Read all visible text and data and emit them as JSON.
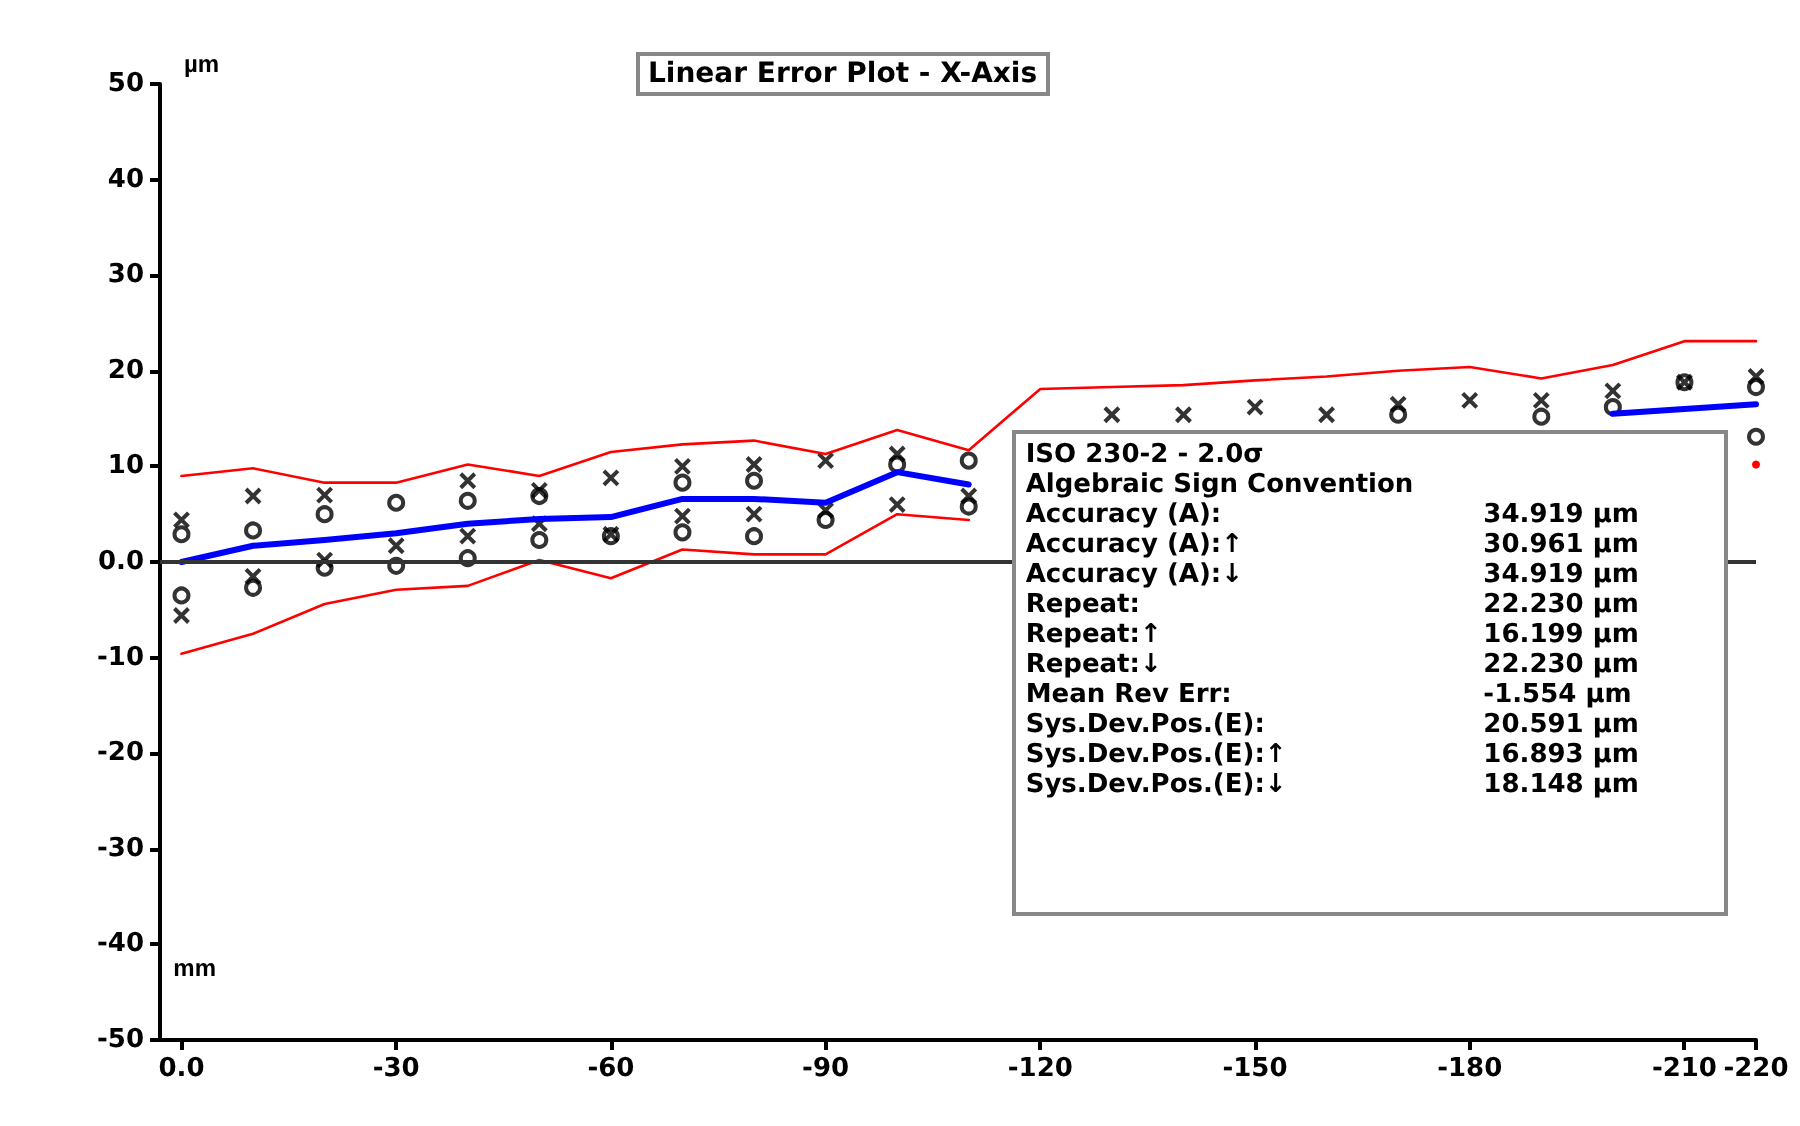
{
  "chart_data": {
    "type": "line",
    "title": "Linear Error Plot - X-Axis",
    "xlabel": "mm",
    "ylabel": "µm",
    "xlim": [
      3,
      -220
    ],
    "xticks": [
      {
        "value": 0,
        "label": "0.0"
      },
      -30,
      -60,
      -90,
      -120,
      -150,
      -180,
      -210,
      -220
    ],
    "ylim": [
      -50,
      50
    ],
    "yticks": [
      -50,
      -40,
      -30,
      -20,
      -10,
      {
        "value": 0,
        "label": "0.0"
      },
      10,
      20,
      30,
      40,
      50
    ],
    "grid": false,
    "line_style": "solid",
    "marker": "none",
    "ref_lines": [
      {
        "axis": "y",
        "value": 0,
        "color": "#333333"
      }
    ],
    "series": [
      {
        "color": "#ff0000",
        "x": [
          0,
          -10,
          -20,
          -30,
          -40,
          -50,
          -60,
          -70,
          -80,
          -90,
          -100,
          -110,
          -120,
          -130,
          -140,
          -150,
          -160,
          -170,
          -180,
          -190,
          -200,
          -210,
          -220
        ],
        "values": [
          9,
          9.8,
          8.3,
          8.3,
          10.2,
          9,
          11.5,
          12.3,
          12.7,
          11.3,
          13.8,
          11.7,
          18.1,
          18.3,
          18.5,
          19,
          19.4,
          20,
          20.4,
          19.2,
          20.6,
          23.1,
          23.1
        ]
      },
      {
        "color": "#ff0000",
        "x": [
          0,
          -10,
          -20,
          -30,
          -40,
          -50,
          -60,
          -70,
          -80,
          -90,
          -100,
          -110,
          -120,
          -130,
          -140,
          -150,
          -160,
          -170,
          -180,
          -190,
          -200,
          -210,
          -220
        ],
        "values": [
          -9.6,
          -7.5,
          -4.4,
          -2.9,
          -2.5,
          0.2,
          -1.7,
          1.3,
          0.8,
          0.8,
          5,
          4.4,
          null,
          null,
          null,
          null,
          null,
          null,
          null,
          null,
          null,
          null,
          10.2
        ]
      },
      {
        "color": "#0000ff",
        "x": [
          0,
          -10,
          -20,
          -30,
          -40,
          -50,
          -60,
          -70,
          -80,
          -90,
          -100,
          -110,
          -120,
          -130,
          -140,
          -150,
          -160,
          -170,
          -180,
          -190,
          -200,
          -210,
          -220
        ],
        "values": [
          0,
          1.7,
          2.3,
          3,
          4,
          4.5,
          4.7,
          6.6,
          6.6,
          6.2,
          9.4,
          8.1,
          null,
          null,
          null,
          null,
          null,
          null,
          null,
          null,
          15.5,
          16,
          16.5
        ]
      },
      {
        "type": "scatter",
        "marker": "cross",
        "color": "#000000",
        "x": [
          0,
          0,
          -10,
          -10,
          -20,
          -20,
          -30,
          -40,
          -40,
          -50,
          -50,
          -60,
          -60,
          -70,
          -70,
          -80,
          -80,
          -90,
          -90,
          -100,
          -100,
          -110,
          -130,
          -140,
          -150,
          -160,
          -170,
          -180,
          -190,
          -200,
          -210,
          -220
        ],
        "values": [
          4.4,
          -5.6,
          6.9,
          -1.5,
          7,
          0.2,
          1.7,
          8.5,
          2.7,
          7.5,
          4,
          8.8,
          2.9,
          10,
          4.8,
          10.2,
          5,
          10.6,
          5.4,
          11.3,
          6,
          6.9,
          15.4,
          15.4,
          16.2,
          15.4,
          16.5,
          16.9,
          16.9,
          17.9,
          18.8,
          19.4
        ]
      },
      {
        "type": "scatter",
        "marker": "circle",
        "color": "#000000",
        "x": [
          0,
          0,
          -10,
          -10,
          -20,
          -20,
          -30,
          -30,
          -40,
          -40,
          -50,
          -50,
          -60,
          -70,
          -70,
          -80,
          -80,
          -90,
          -100,
          -110,
          -110,
          -170,
          -190,
          -200,
          -210,
          -220,
          -220
        ],
        "values": [
          2.9,
          -3.5,
          3.3,
          -2.7,
          5,
          -0.6,
          6.2,
          -0.4,
          6.4,
          0.4,
          6.9,
          2.3,
          2.7,
          8.3,
          3.1,
          8.5,
          2.7,
          4.4,
          10.2,
          10.6,
          5.8,
          15.4,
          15.2,
          16.2,
          18.8,
          18.3,
          13.1
        ]
      }
    ],
    "annotations": [
      "ISO 230-2 - 2.0σ",
      "Algebraic Sign Convention",
      "Accuracy (A):",
      "34.919 µm",
      "Accuracy (A):↑",
      "30.961 µm",
      "Accuracy (A):↓",
      "34.919 µm",
      "Repeat:",
      "22.230 µm",
      "Repeat:↑",
      "16.199 µm",
      "Repeat:↓",
      "22.230 µm",
      "Mean Rev Err:",
      "-1.554 µm",
      "Sys.Dev.Pos.(E):",
      "20.591 µm",
      "Sys.Dev.Pos.(E):↑",
      "16.893 µm",
      "Sys.Dev.Pos.(E):↓",
      "18.148 µm"
    ]
  }
}
